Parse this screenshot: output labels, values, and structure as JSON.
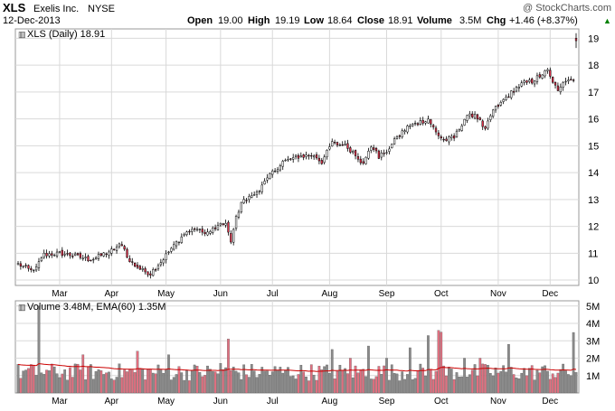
{
  "header": {
    "symbol": "XLS",
    "company": "Exelis Inc.",
    "exchange": "NYSE",
    "date": "12-Dec-2013",
    "watermark": "@ StockCharts.com",
    "open_label": "Open",
    "open_value": "19.00",
    "high_label": "High",
    "high_value": "19.19",
    "low_label": "Low",
    "low_value": "18.64",
    "close_label": "Close",
    "close_value": "18.91",
    "volume_label": "Volume",
    "volume_value": "3.5M",
    "chg_label": "Chg",
    "chg_value": "+1.46 (+8.37%)",
    "chg_arrow": "▲"
  },
  "price_legend": "XLS (Daily) 18.91",
  "volume_legend": "Volume 3.48M, EMA(60) 1.35M",
  "colors": {
    "up": "#ffffff",
    "down": "#e0304a",
    "candle_outline": "#000000",
    "vol_up": "#8a8a8a",
    "vol_down": "#e07080",
    "ema": "#cc0000",
    "grid": "#d9d9d9",
    "border": "#999999",
    "chg_green": "#008000"
  },
  "chart_data": [
    {
      "type": "candlestick",
      "title": "XLS (Daily) 18.91",
      "x_tick_labels": [
        "Mar",
        "Apr",
        "May",
        "Jun",
        "Jul",
        "Aug",
        "Sep",
        "Oct",
        "Nov",
        "Dec"
      ],
      "x_tick_sessions": [
        16,
        36,
        57,
        78,
        98,
        120,
        142,
        163,
        185,
        205
      ],
      "y_ticks": [
        10,
        11,
        12,
        13,
        14,
        15,
        16,
        17,
        18,
        19
      ],
      "ylim": [
        9.8,
        19.35
      ],
      "grid": true,
      "axis_side": "right",
      "anchors": [
        [
          0,
          10.6
        ],
        [
          6,
          10.3
        ],
        [
          10,
          10.95
        ],
        [
          16,
          11.0
        ],
        [
          22,
          10.9
        ],
        [
          28,
          10.75
        ],
        [
          36,
          11.1
        ],
        [
          40,
          11.35
        ],
        [
          43,
          10.7
        ],
        [
          48,
          10.35
        ],
        [
          51,
          10.25
        ],
        [
          56,
          10.8
        ],
        [
          60,
          11.3
        ],
        [
          64,
          11.7
        ],
        [
          68,
          11.95
        ],
        [
          72,
          11.7
        ],
        [
          76,
          11.95
        ],
        [
          80,
          12.1
        ],
        [
          82,
          11.4
        ],
        [
          84,
          12.3
        ],
        [
          86,
          12.9
        ],
        [
          90,
          13.1
        ],
        [
          94,
          13.5
        ],
        [
          98,
          14.0
        ],
        [
          102,
          14.4
        ],
        [
          108,
          14.6
        ],
        [
          114,
          14.65
        ],
        [
          117,
          14.4
        ],
        [
          121,
          15.1
        ],
        [
          126,
          15.0
        ],
        [
          130,
          14.7
        ],
        [
          133,
          14.3
        ],
        [
          136,
          15.0
        ],
        [
          139,
          14.6
        ],
        [
          142,
          14.8
        ],
        [
          146,
          15.3
        ],
        [
          150,
          15.7
        ],
        [
          154,
          15.85
        ],
        [
          158,
          16.0
        ],
        [
          161,
          15.5
        ],
        [
          164,
          15.2
        ],
        [
          168,
          15.3
        ],
        [
          172,
          16.0
        ],
        [
          176,
          16.2
        ],
        [
          180,
          15.6
        ],
        [
          183,
          16.3
        ],
        [
          186,
          16.6
        ],
        [
          190,
          17.0
        ],
        [
          194,
          17.3
        ],
        [
          198,
          17.4
        ],
        [
          201,
          17.6
        ],
        [
          204,
          17.8
        ],
        [
          206,
          17.3
        ],
        [
          208,
          17.1
        ],
        [
          210,
          17.4
        ],
        [
          212,
          17.45
        ]
      ],
      "last_candle": {
        "open": 19.0,
        "high": 19.19,
        "low": 18.64,
        "close": 18.91
      }
    },
    {
      "type": "bar",
      "title": "Volume 3.48M, EMA(60) 1.35M",
      "ylabel_ticks": [
        "1M",
        "2M",
        "3M",
        "4M",
        "5M"
      ],
      "y_ticks": [
        1,
        2,
        3,
        4,
        5
      ],
      "ylim": [
        0,
        5.3
      ],
      "units": "millions",
      "spikes": {
        "8": 5.0,
        "25": 2.2,
        "46": 2.4,
        "58": 2.2,
        "78": 1.7,
        "81": 3.1,
        "83": 1.5,
        "121": 2.5,
        "128": 2.0,
        "135": 2.7,
        "142": 2.0,
        "151": 2.6,
        "158": 3.3,
        "162": 3.6,
        "163": 3.5,
        "172": 2.0,
        "178": 2.0,
        "189": 2.8,
        "214": 3.48
      },
      "ema_value": 1.35
    }
  ]
}
